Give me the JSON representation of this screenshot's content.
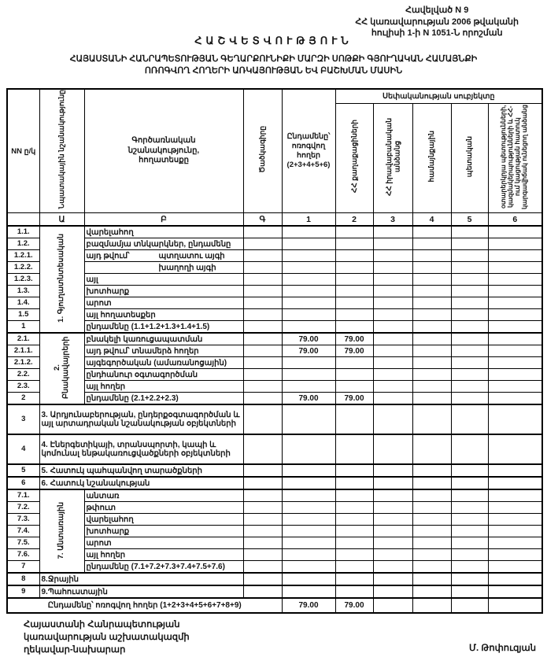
{
  "colors": {
    "ink": "#141414",
    "border": "#000000",
    "paper": "#ffffff"
  },
  "appendix": {
    "line1": "Հավելված N 9",
    "line2": "ՀՀ կառավարության 2006 թվականի",
    "line3": "հուլիսի 1-ի N 1051-Ն որոշման"
  },
  "title": "ՀԱՇՎԵՏՎՈՒԹՅՈՒՆ",
  "subtitle_line1": "ՀԱՅԱՍՏԱՆԻ ՀԱՆՐԱՊԵՏՈՒԹՅԱՆ ԳԵՂԱՐՔՈՒՆԻՔԻ ՄԱՐԶԻ ՍՈԹՔԻ ԳՅՈՒՂԱԿԱՆ ՀԱՄԱՅՆՔԻ",
  "subtitle_line2": "ՈՌՈԳՎՈՂ ՀՈՂԵՐԻ ԱՌԿԱՅՈՒԹՅԱՆ ԵՎ ԲԱՇԽՄԱՆ ՄԱՍԻՆ",
  "table": {
    "group_header": "Սեփականության սուբյեկտը",
    "col_headers": {
      "nn": "NN ը/կ",
      "purpose": "Նպատակային նշանակությունը",
      "functional": "Գործառնական նշանակությունը, հողատեսքը",
      "code": "Ծածկագիրը",
      "total": "Ընդամենը՝ ոռոգվող հողեր (2+3+4+5+6)",
      "subjects": [
        "ՀՀ քաղաքացիների",
        "ՀՀ իրավաբանական անձանց",
        "համայնքային",
        "պետական",
        "օտարերկրյա պետությունների, կազմակերպությունների և ՀՀ-ում կացության հատուկ կարգավիճակ ունեցող անձանց"
      ]
    },
    "letter_row": [
      "",
      "Ա",
      "Բ",
      "Գ",
      "1",
      "2",
      "3",
      "4",
      "5",
      "6"
    ],
    "rows": [
      {
        "no": "1.1.",
        "section": "1. Գյուղատնտեսական",
        "section_span": 9,
        "label": "վարելահող",
        "cells": [
          "",
          "",
          "",
          "",
          "",
          "",
          ""
        ]
      },
      {
        "no": "1.2.",
        "label": "բազմամյա տնկարկներ, ընդամենը",
        "cells": [
          "",
          "",
          "",
          "",
          "",
          "",
          ""
        ]
      },
      {
        "no": "1.2.1.",
        "label": "այդ թվում՝",
        "label2": "պտղատու այգի",
        "cells": [
          "",
          "",
          "",
          "",
          "",
          "",
          ""
        ]
      },
      {
        "no": "1.2.2.",
        "label": "",
        "label2": "խաղողի այգի",
        "cells": [
          "",
          "",
          "",
          "",
          "",
          "",
          ""
        ]
      },
      {
        "no": "1.2.3.",
        "label": "այլ",
        "cells": [
          "",
          "",
          "",
          "",
          "",
          "",
          ""
        ]
      },
      {
        "no": "1.3.",
        "label": "խոտհարք",
        "cells": [
          "",
          "",
          "",
          "",
          "",
          "",
          ""
        ]
      },
      {
        "no": "1.4.",
        "label": "արոտ",
        "cells": [
          "",
          "",
          "",
          "",
          "",
          "",
          ""
        ]
      },
      {
        "no": "1.5",
        "label": "այլ հողատեսքեր",
        "cells": [
          "",
          "",
          "",
          "",
          "",
          "",
          ""
        ]
      },
      {
        "no": "1",
        "label": "ընդամենը (1.1+1.2+1.3+1.4+1.5)",
        "cells": [
          "",
          "",
          "",
          "",
          "",
          "",
          ""
        ]
      },
      {
        "no": "2.1.",
        "heavy": true,
        "section": "2. Բնակավայրերի",
        "section_span": 6,
        "label": "բնակելի կառուցապատման",
        "cells": [
          "",
          "79.00",
          "79.00",
          "",
          "",
          "",
          ""
        ]
      },
      {
        "no": "2.1.1.",
        "label": "այդ թվում՝ տնամերձ հողեր",
        "cells": [
          "",
          "79.00",
          "79.00",
          "",
          "",
          "",
          ""
        ]
      },
      {
        "no": "2.1.2.",
        "label": "այգեգործական (ամառանոցային)",
        "cells": [
          "",
          "",
          "",
          "",
          "",
          "",
          ""
        ]
      },
      {
        "no": "2.2.",
        "label": "ընդհանուր օգտագործման",
        "cells": [
          "",
          "",
          "",
          "",
          "",
          "",
          ""
        ]
      },
      {
        "no": "2.3.",
        "label": "այլ հողեր",
        "cells": [
          "",
          "",
          "",
          "",
          "",
          "",
          ""
        ]
      },
      {
        "no": "2",
        "label": "ընդամենը (2.1+2.2+2.3)",
        "cells": [
          "",
          "79.00",
          "79.00",
          "",
          "",
          "",
          ""
        ]
      },
      {
        "no": "3",
        "wide": true,
        "tall": true,
        "heavy": true,
        "label": "3. Արդյունաբերության, ընդերքօգտագործման և այլ արտադրական նշանակության օբյեկտների",
        "cells": [
          "",
          "",
          "",
          "",
          "",
          "",
          ""
        ]
      },
      {
        "no": "4",
        "wide": true,
        "tall": true,
        "heavy": true,
        "label": "4. Էներգետիկայի, տրանսպորտի, կապի և կոմունալ ենթակառուցվածքների օբյեկտների",
        "cells": [
          "",
          "",
          "",
          "",
          "",
          "",
          ""
        ]
      },
      {
        "no": "5",
        "wide": true,
        "heavy": true,
        "label": "5. Հատուկ պահպանվող տարածքների",
        "cells": [
          "",
          "",
          "",
          "",
          "",
          "",
          ""
        ]
      },
      {
        "no": "6",
        "wide": true,
        "heavy": true,
        "label": "6. Հատուկ նշանակության",
        "cells": [
          "",
          "",
          "",
          "",
          "",
          "",
          ""
        ]
      },
      {
        "no": "7.1.",
        "heavy": true,
        "section": "7. Անտառային",
        "section_span": 7,
        "label": "անտառ",
        "cells": [
          "",
          "",
          "",
          "",
          "",
          "",
          ""
        ]
      },
      {
        "no": "7.2.",
        "label": "թփուտ",
        "cells": [
          "",
          "",
          "",
          "",
          "",
          "",
          ""
        ]
      },
      {
        "no": "7.3.",
        "label": "վարելահող",
        "cells": [
          "",
          "",
          "",
          "",
          "",
          "",
          ""
        ]
      },
      {
        "no": "7.4.",
        "label": "խոտհարք",
        "cells": [
          "",
          "",
          "",
          "",
          "",
          "",
          ""
        ]
      },
      {
        "no": "7.5.",
        "label": "արոտ",
        "cells": [
          "",
          "",
          "",
          "",
          "",
          "",
          ""
        ]
      },
      {
        "no": "7.6.",
        "label": "այլ հողեր",
        "cells": [
          "",
          "",
          "",
          "",
          "",
          "",
          ""
        ]
      },
      {
        "no": "7",
        "label": "ընդամենը (7.1+7.2+7.3+7.4+7.5+7.6)",
        "cells": [
          "",
          "",
          "",
          "",
          "",
          "",
          ""
        ]
      },
      {
        "no": "8",
        "wide": true,
        "heavy": true,
        "label": "8.Ջրային",
        "cells": [
          "",
          "",
          "",
          "",
          "",
          "",
          ""
        ]
      },
      {
        "no": "9",
        "wide": true,
        "heavy": true,
        "label": "9.Պահուստային",
        "cells": [
          "",
          "",
          "",
          "",
          "",
          "",
          ""
        ]
      }
    ],
    "total_row": {
      "label": "Ընդամենը՝ ոռոգվող հողեր (1+2+3+4+5+6+7+8+9)",
      "cells": [
        "79.00",
        "79.00",
        "",
        "",
        "",
        ""
      ]
    }
  },
  "footer": {
    "left_line1": "Հայաստանի Հանրապետության",
    "left_line2": "կառավարության աշխատակազմի",
    "left_line3": "ղեկավար-նախարար",
    "signature": "Մ. Թոփուզյան"
  }
}
